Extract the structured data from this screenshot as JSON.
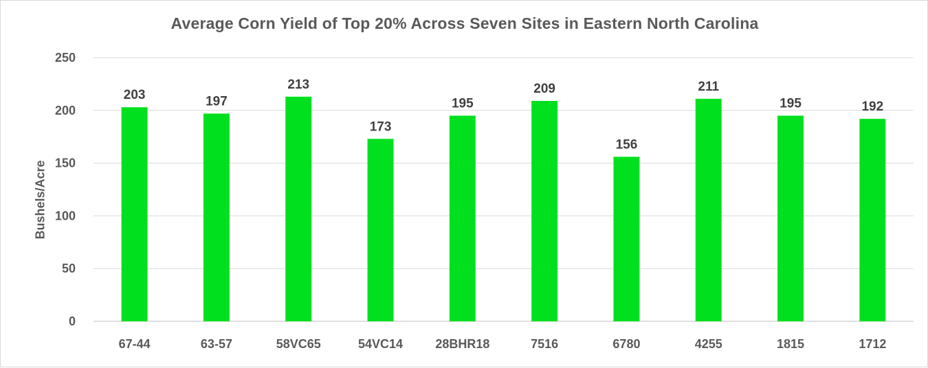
{
  "chart_data": {
    "type": "bar",
    "title": "Average Corn Yield of Top 20% Across Seven Sites in Eastern North Carolina",
    "xlabel": "",
    "ylabel": "Bushels/Acre",
    "categories": [
      "67-44",
      "63-57",
      "58VC65",
      "54VC14",
      "28BHR18",
      "7516",
      "6780",
      "4255",
      "1815",
      "1712"
    ],
    "values": [
      203,
      197,
      213,
      173,
      195,
      209,
      156,
      211,
      195,
      192
    ],
    "ylim": [
      0,
      250
    ],
    "yticks": [
      0,
      50,
      100,
      150,
      200,
      250
    ],
    "grid": "horizontal",
    "legend": "none",
    "bar_color": "#00e01f",
    "data_labels": true
  }
}
